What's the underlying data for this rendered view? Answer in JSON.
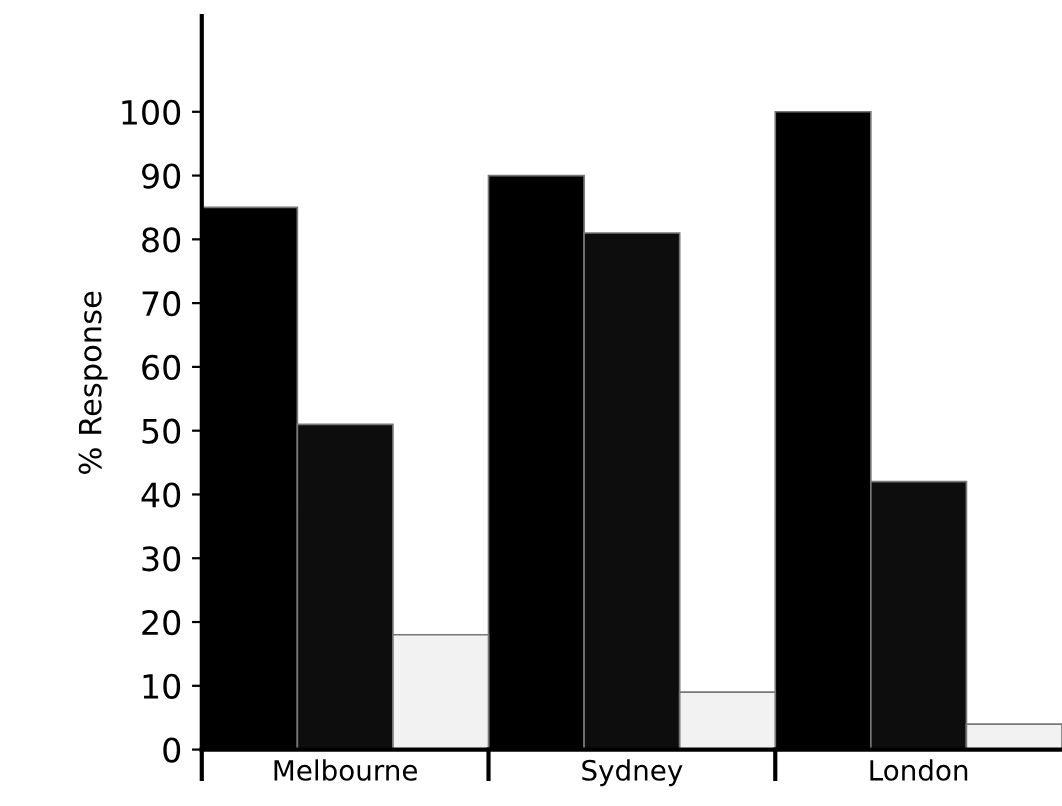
{
  "chart_data": {
    "type": "bar",
    "ylabel": "% Response",
    "categories": [
      "Melbourne",
      "Sydney",
      "London"
    ],
    "series": [
      {
        "color": "#000000",
        "values": [
          85,
          90,
          100
        ]
      },
      {
        "color": "#0d0d0d",
        "values": [
          51,
          81,
          42
        ]
      },
      {
        "color": "#f2f2f2",
        "values": [
          18,
          9,
          4
        ]
      }
    ],
    "ylim": [
      0,
      115
    ],
    "yticks": [
      0,
      10,
      20,
      30,
      40,
      50,
      60,
      70,
      80,
      90,
      100
    ],
    "grid": false
  }
}
